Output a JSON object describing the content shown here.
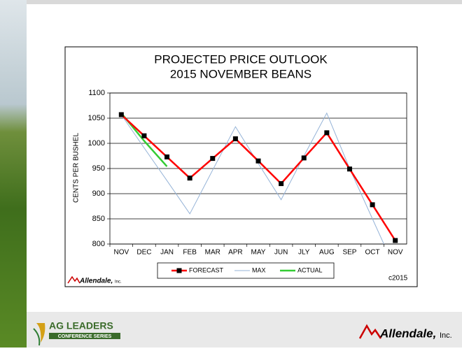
{
  "chart_data": {
    "type": "line",
    "title": "PROJECTED PRICE OUTLOOK",
    "subtitle": "2015 NOVEMBER BEANS",
    "y_label": "CENTS PER BUSHEL",
    "categories": [
      "NOV",
      "DEC",
      "JAN",
      "FEB",
      "MAR",
      "APR",
      "MAY",
      "JUN",
      "JLY",
      "AUG",
      "SEP",
      "OCT",
      "NOV"
    ],
    "series": [
      {
        "name": "FORECAST",
        "color": "#ff0000",
        "marker": "square",
        "values": [
          1057,
          1015,
          973,
          931,
          970,
          1009,
          965,
          920,
          971,
          1021,
          949,
          878,
          807
        ]
      },
      {
        "name": "MAX",
        "color": "#95b3d7",
        "values": [
          1057,
          991,
          926,
          860,
          947,
          1033,
          960,
          888,
          975,
          1060,
          950,
          850,
          750
        ]
      },
      {
        "name": "ACTUAL",
        "color": "#33cc33",
        "values": [
          1060,
          1005,
          954,
          null,
          null,
          null,
          null,
          null,
          null,
          null,
          null,
          null,
          null
        ]
      }
    ],
    "ylim": [
      800,
      1100
    ],
    "yticks": [
      800,
      850,
      900,
      950,
      1000,
      1050,
      1100
    ],
    "grid": true,
    "legend": "bottom",
    "logo": "Allendale,",
    "logo_suffix": "Inc.",
    "copyright": "c2015"
  },
  "footer": {
    "left_title": "AG LEADERS",
    "left_subtitle": "CONFERENCE SERIES",
    "right_logo": "Allendale,",
    "right_suffix": "Inc."
  }
}
